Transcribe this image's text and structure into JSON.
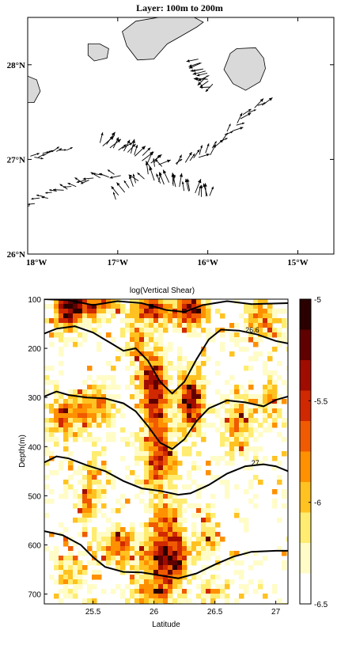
{
  "map_panel": {
    "title": "Layer: 100m to 200m",
    "lat_ticks": [
      {
        "label": "28°N",
        "lat": 28
      },
      {
        "label": "27°N",
        "lat": 27
      },
      {
        "label": "26°N",
        "lat": 26
      }
    ],
    "lon_ticks": [
      {
        "label": "18°W",
        "lon": -18
      },
      {
        "label": "17°W",
        "lon": -17
      },
      {
        "label": "16°W",
        "lon": -16
      },
      {
        "label": "15°W",
        "lon": -15
      }
    ],
    "lon_range": [
      -18,
      -14.6
    ],
    "lat_range": [
      26,
      28.5
    ],
    "land_color": "#d9d9d9",
    "arrow_color": "#000000",
    "islands": [
      {
        "name": "la-gomera",
        "points": [
          [
            -17.33,
            28.22
          ],
          [
            -17.2,
            28.22
          ],
          [
            -17.1,
            28.17
          ],
          [
            -17.12,
            28.07
          ],
          [
            -17.26,
            28.04
          ],
          [
            -17.33,
            28.1
          ]
        ]
      },
      {
        "name": "tenerife",
        "points": [
          [
            -16.95,
            28.35
          ],
          [
            -16.8,
            28.46
          ],
          [
            -16.55,
            28.5
          ],
          [
            -16.15,
            28.5
          ],
          [
            -16.05,
            28.45
          ],
          [
            -16.12,
            28.4
          ],
          [
            -16.3,
            28.3
          ],
          [
            -16.45,
            28.22
          ],
          [
            -16.6,
            28.06
          ],
          [
            -16.78,
            28.05
          ],
          [
            -16.9,
            28.2
          ]
        ]
      },
      {
        "name": "gran-canaria",
        "points": [
          [
            -15.75,
            28.12
          ],
          [
            -15.68,
            28.17
          ],
          [
            -15.47,
            28.18
          ],
          [
            -15.38,
            28.07
          ],
          [
            -15.36,
            27.96
          ],
          [
            -15.42,
            27.82
          ],
          [
            -15.58,
            27.73
          ],
          [
            -15.72,
            27.8
          ],
          [
            -15.82,
            27.95
          ]
        ]
      },
      {
        "name": "la-palma",
        "points": [
          [
            -18.0,
            27.88
          ],
          [
            -17.9,
            27.84
          ],
          [
            -17.86,
            27.72
          ],
          [
            -17.93,
            27.6
          ],
          [
            -18.0,
            27.6
          ]
        ]
      }
    ],
    "tracks": [
      {
        "name": "track-west",
        "points": [
          [
            -18.0,
            27.02
          ],
          [
            -17.57,
            27.1
          ]
        ],
        "n": 10,
        "angle_offset": 10,
        "length": 0.5
      },
      {
        "name": "track-south",
        "points": [
          [
            -18.0,
            26.52
          ],
          [
            -17.3,
            26.8
          ],
          [
            -16.95,
            26.85
          ]
        ],
        "n": 20,
        "angle_offset": 175,
        "length": 0.6
      },
      {
        "name": "track-southwest-loop",
        "points": [
          [
            -17.05,
            26.58
          ],
          [
            -16.85,
            26.7
          ],
          [
            -16.65,
            26.85
          ],
          [
            -16.5,
            26.95
          ]
        ],
        "n": 12,
        "angle_offset": 120,
        "length": 0.7
      },
      {
        "name": "track-central",
        "points": [
          [
            -17.2,
            27.18
          ],
          [
            -16.85,
            27.05
          ],
          [
            -16.55,
            26.95
          ]
        ],
        "n": 18,
        "angle_offset": 50,
        "length": 0.8
      },
      {
        "name": "track-eastbound",
        "points": [
          [
            -16.6,
            26.8
          ],
          [
            -16.2,
            26.65
          ],
          [
            -15.95,
            26.6
          ]
        ],
        "n": 18,
        "angle_offset": 95,
        "length": 0.8
      },
      {
        "name": "track-northeast",
        "points": [
          [
            -16.4,
            26.95
          ],
          [
            -16.0,
            27.05
          ],
          [
            -15.6,
            27.45
          ],
          [
            -15.4,
            27.6
          ]
        ],
        "n": 24,
        "angle_offset": 45,
        "length": 0.7
      },
      {
        "name": "track-north-cluster",
        "points": [
          [
            -16.1,
            28.05
          ],
          [
            -15.95,
            27.75
          ]
        ],
        "n": 14,
        "angle_offset": 200,
        "length": 0.75
      }
    ]
  },
  "shear_panel": {
    "title": "log(Vertical Shear)",
    "xlabel": "Latitude",
    "ylabel": "Depth(m)",
    "x_range": [
      25.1,
      27.1
    ],
    "y_range": [
      100,
      720
    ],
    "x_ticks": [
      25.5,
      26,
      26.5,
      27
    ],
    "y_ticks": [
      100,
      200,
      300,
      400,
      500,
      600,
      700
    ],
    "colorbar": {
      "range": [
        -6.5,
        -5
      ],
      "ticks": [
        -5,
        -5.5,
        -6,
        -6.5
      ],
      "colors": [
        "#ffffff",
        "#fffcc8",
        "#ffec70",
        "#ffc220",
        "#ff9000",
        "#f05a00",
        "#d02800",
        "#a00c00",
        "#600000",
        "#2a0000"
      ]
    },
    "isopycnal_labels": [
      {
        "text": "26.6",
        "lat": 26.75,
        "depth": 168
      },
      {
        "text": "27",
        "lat": 26.8,
        "depth": 438
      }
    ],
    "isopycnals": [
      {
        "points": [
          [
            25.1,
            100
          ],
          [
            25.3,
            102
          ],
          [
            25.5,
            112
          ],
          [
            25.7,
            104
          ],
          [
            25.9,
            108
          ],
          [
            26.1,
            122
          ],
          [
            26.25,
            126
          ],
          [
            26.4,
            112
          ],
          [
            26.6,
            104
          ],
          [
            26.8,
            110
          ],
          [
            27.1,
            108
          ]
        ]
      },
      {
        "points": [
          [
            25.1,
            170
          ],
          [
            25.2,
            160
          ],
          [
            25.35,
            155
          ],
          [
            25.5,
            168
          ],
          [
            25.65,
            190
          ],
          [
            25.75,
            205
          ],
          [
            25.85,
            200
          ],
          [
            25.95,
            225
          ],
          [
            26.05,
            268
          ],
          [
            26.15,
            292
          ],
          [
            26.25,
            268
          ],
          [
            26.35,
            222
          ],
          [
            26.45,
            182
          ],
          [
            26.55,
            162
          ],
          [
            26.7,
            164
          ],
          [
            26.85,
            172
          ],
          [
            27.0,
            185
          ],
          [
            27.1,
            190
          ]
        ]
      },
      {
        "points": [
          [
            25.1,
            298
          ],
          [
            25.2,
            288
          ],
          [
            25.3,
            295
          ],
          [
            25.45,
            300
          ],
          [
            25.6,
            302
          ],
          [
            25.75,
            312
          ],
          [
            25.85,
            328
          ],
          [
            25.95,
            358
          ],
          [
            26.05,
            392
          ],
          [
            26.15,
            405
          ],
          [
            26.25,
            385
          ],
          [
            26.35,
            348
          ],
          [
            26.45,
            322
          ],
          [
            26.6,
            306
          ],
          [
            26.75,
            310
          ],
          [
            26.9,
            318
          ],
          [
            27.0,
            305
          ],
          [
            27.1,
            298
          ]
        ]
      },
      {
        "points": [
          [
            25.1,
            432
          ],
          [
            25.2,
            420
          ],
          [
            25.3,
            424
          ],
          [
            25.45,
            438
          ],
          [
            25.6,
            450
          ],
          [
            25.75,
            470
          ],
          [
            25.9,
            485
          ],
          [
            26.05,
            490
          ],
          [
            26.2,
            498
          ],
          [
            26.3,
            495
          ],
          [
            26.45,
            478
          ],
          [
            26.6,
            455
          ],
          [
            26.75,
            440
          ],
          [
            26.9,
            436
          ],
          [
            27.0,
            440
          ],
          [
            27.1,
            450
          ]
        ]
      },
      {
        "points": [
          [
            25.1,
            572
          ],
          [
            25.25,
            580
          ],
          [
            25.4,
            600
          ],
          [
            25.5,
            625
          ],
          [
            25.6,
            645
          ],
          [
            25.75,
            655
          ],
          [
            25.9,
            656
          ],
          [
            26.05,
            662
          ],
          [
            26.2,
            668
          ],
          [
            26.35,
            658
          ],
          [
            26.5,
            640
          ],
          [
            26.65,
            624
          ],
          [
            26.8,
            614
          ],
          [
            27.0,
            612
          ],
          [
            27.1,
            612
          ]
        ]
      }
    ],
    "hotspots": [
      {
        "lat": 25.3,
        "depth": 120,
        "amp": 1.3,
        "rx": 0.09,
        "ry": 30
      },
      {
        "lat": 25.55,
        "depth": 110,
        "amp": 0.9,
        "rx": 0.12,
        "ry": 22
      },
      {
        "lat": 26.0,
        "depth": 120,
        "amp": 1.0,
        "rx": 0.1,
        "ry": 20
      },
      {
        "lat": 26.3,
        "depth": 125,
        "amp": 1.2,
        "rx": 0.1,
        "ry": 25
      },
      {
        "lat": 26.9,
        "depth": 140,
        "amp": 0.7,
        "rx": 0.1,
        "ry": 30
      },
      {
        "lat": 25.85,
        "depth": 180,
        "amp": 0.6,
        "rx": 0.06,
        "ry": 40
      },
      {
        "lat": 26.0,
        "depth": 280,
        "amp": 1.25,
        "rx": 0.08,
        "ry": 55
      },
      {
        "lat": 26.3,
        "depth": 310,
        "amp": 1.3,
        "rx": 0.07,
        "ry": 45
      },
      {
        "lat": 25.5,
        "depth": 320,
        "amp": 0.8,
        "rx": 0.12,
        "ry": 30
      },
      {
        "lat": 25.25,
        "depth": 340,
        "amp": 0.7,
        "rx": 0.08,
        "ry": 30
      },
      {
        "lat": 26.7,
        "depth": 360,
        "amp": 0.7,
        "rx": 0.08,
        "ry": 40
      },
      {
        "lat": 26.95,
        "depth": 300,
        "amp": 0.6,
        "rx": 0.06,
        "ry": 30
      },
      {
        "lat": 26.05,
        "depth": 420,
        "amp": 1.0,
        "rx": 0.09,
        "ry": 45
      },
      {
        "lat": 25.5,
        "depth": 450,
        "amp": 0.7,
        "rx": 0.05,
        "ry": 25
      },
      {
        "lat": 25.45,
        "depth": 520,
        "amp": 0.7,
        "rx": 0.05,
        "ry": 30
      },
      {
        "lat": 26.1,
        "depth": 540,
        "amp": 0.7,
        "rx": 0.08,
        "ry": 25
      },
      {
        "lat": 25.7,
        "depth": 600,
        "amp": 0.85,
        "rx": 0.1,
        "ry": 30
      },
      {
        "lat": 26.1,
        "depth": 620,
        "amp": 1.35,
        "rx": 0.13,
        "ry": 40
      },
      {
        "lat": 25.3,
        "depth": 650,
        "amp": 0.6,
        "rx": 0.07,
        "ry": 35
      },
      {
        "lat": 26.0,
        "depth": 700,
        "amp": 0.7,
        "rx": 0.12,
        "ry": 20
      },
      {
        "lat": 26.5,
        "depth": 700,
        "amp": 0.5,
        "rx": 0.08,
        "ry": 20
      },
      {
        "lat": 26.45,
        "depth": 580,
        "amp": 0.6,
        "rx": 0.06,
        "ry": 35
      }
    ]
  }
}
